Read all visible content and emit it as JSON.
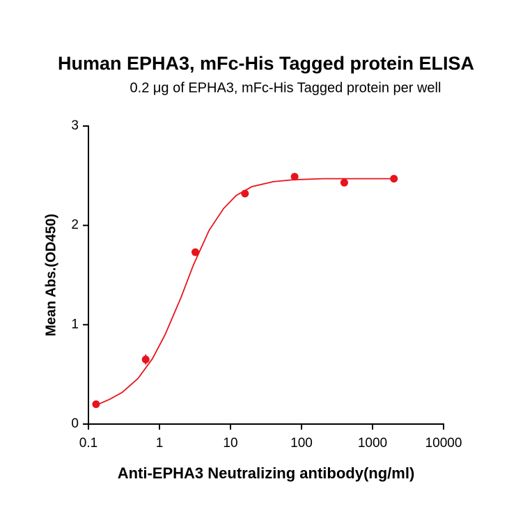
{
  "chart_data": {
    "type": "scatter",
    "title": "Human EPHA3, mFc-His Tagged protein ELISA",
    "subtitle": "0.2 μg of EPHA3, mFc-His Tagged protein per well",
    "x_label": "Anti-EPHA3 Neutralizing antibody(ng/ml)",
    "y_label": "Mean Abs.(OD450)",
    "xscale": "log",
    "xlim": [
      0.1,
      10000
    ],
    "xticks": [
      0.1,
      1,
      10,
      100,
      1000,
      10000
    ],
    "ylim": [
      0,
      3
    ],
    "yticks": [
      0,
      1,
      2,
      3
    ],
    "series": [
      {
        "color": "#e8141b",
        "x": [
          0.128,
          0.64,
          3.2,
          16,
          80,
          400,
          2000
        ],
        "values": [
          0.2,
          0.65,
          1.73,
          2.32,
          2.49,
          2.43,
          2.47
        ],
        "errors": [
          0.01,
          0.05,
          0.02,
          0.02,
          0.02,
          0.02,
          0.01
        ]
      }
    ],
    "fit": {
      "color": "#e8141b",
      "x": [
        0.128,
        0.2,
        0.3,
        0.5,
        0.8,
        1.2,
        2,
        3,
        5,
        8,
        12,
        20,
        40,
        80,
        200,
        500,
        2000
      ],
      "values": [
        0.19,
        0.25,
        0.32,
        0.46,
        0.66,
        0.9,
        1.27,
        1.6,
        1.95,
        2.17,
        2.3,
        2.39,
        2.44,
        2.46,
        2.47,
        2.47,
        2.47
      ]
    }
  }
}
